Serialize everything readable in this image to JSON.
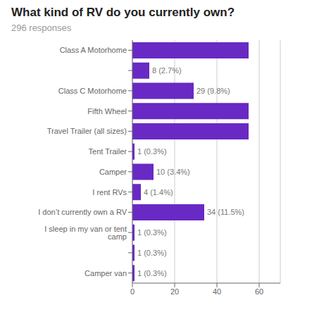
{
  "chart_data": {
    "type": "bar",
    "orientation": "horizontal",
    "title": "What kind of RV do you currently own?",
    "subtitle": "296 responses",
    "categories": [
      "Class A Motorhome",
      null,
      "Class C Motorhome",
      "Fifth Wheel",
      "Travel Trailer (all sizes)",
      "Tent Trailer",
      "Camper",
      "I rent RVs",
      "I don’t currently own a RV",
      "I sleep in my van or tent camp",
      null,
      "Camper van"
    ],
    "values": [
      55,
      8,
      29,
      55,
      55,
      1,
      10,
      4,
      34,
      1,
      1,
      1
    ],
    "value_labels": [
      null,
      "8 (2.7%)",
      "29 (9.8%)",
      null,
      null,
      "1 (0.3%)",
      "10 (3.4%)",
      "4 (1.4%)",
      "34 (11.5%)",
      "1 (0.3%)",
      "1 (0.3%)",
      "1 (0.3%)"
    ],
    "color": "#6929c4",
    "xlim": [
      0,
      70
    ],
    "xticks": [
      0,
      20,
      40,
      60
    ],
    "grid": true
  }
}
